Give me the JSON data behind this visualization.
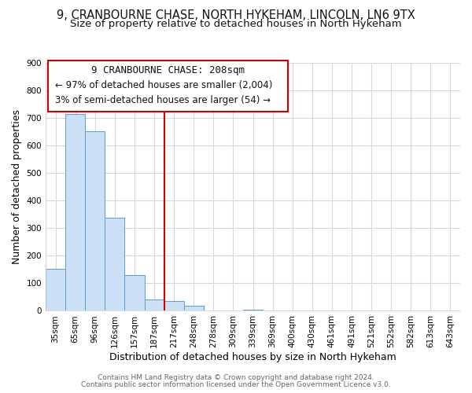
{
  "title": "9, CRANBOURNE CHASE, NORTH HYKEHAM, LINCOLN, LN6 9TX",
  "subtitle": "Size of property relative to detached houses in North Hykeham",
  "xlabel": "Distribution of detached houses by size in North Hykeham",
  "ylabel": "Number of detached properties",
  "categories": [
    "35sqm",
    "65sqm",
    "96sqm",
    "126sqm",
    "157sqm",
    "187sqm",
    "217sqm",
    "248sqm",
    "278sqm",
    "309sqm",
    "339sqm",
    "369sqm",
    "400sqm",
    "430sqm",
    "461sqm",
    "491sqm",
    "521sqm",
    "552sqm",
    "582sqm",
    "613sqm",
    "643sqm"
  ],
  "values": [
    152,
    714,
    651,
    338,
    130,
    42,
    35,
    18,
    0,
    0,
    5,
    0,
    0,
    0,
    0,
    0,
    0,
    0,
    0,
    0,
    0
  ],
  "bar_color": "#cce0f5",
  "bar_edge_color": "#5b9bd5",
  "vline_x": 5.5,
  "vline_color": "#cc0000",
  "annotation_box_color": "#cc0000",
  "annotation_title": "9 CRANBOURNE CHASE: 208sqm",
  "annotation_line1": "← 97% of detached houses are smaller (2,004)",
  "annotation_line2": "3% of semi-detached houses are larger (54) →",
  "ylim": [
    0,
    900
  ],
  "yticks": [
    0,
    100,
    200,
    300,
    400,
    500,
    600,
    700,
    800,
    900
  ],
  "plot_bg_color": "#ffffff",
  "fig_bg_color": "#ffffff",
  "grid_color": "#d0d8e8",
  "footer1": "Contains HM Land Registry data © Crown copyright and database right 2024.",
  "footer2": "Contains public sector information licensed under the Open Government Licence v3.0.",
  "title_fontsize": 10.5,
  "subtitle_fontsize": 9.5,
  "axis_label_fontsize": 9,
  "tick_fontsize": 7.5,
  "annotation_title_fontsize": 9,
  "annotation_text_fontsize": 8.5,
  "footer_fontsize": 6.5
}
